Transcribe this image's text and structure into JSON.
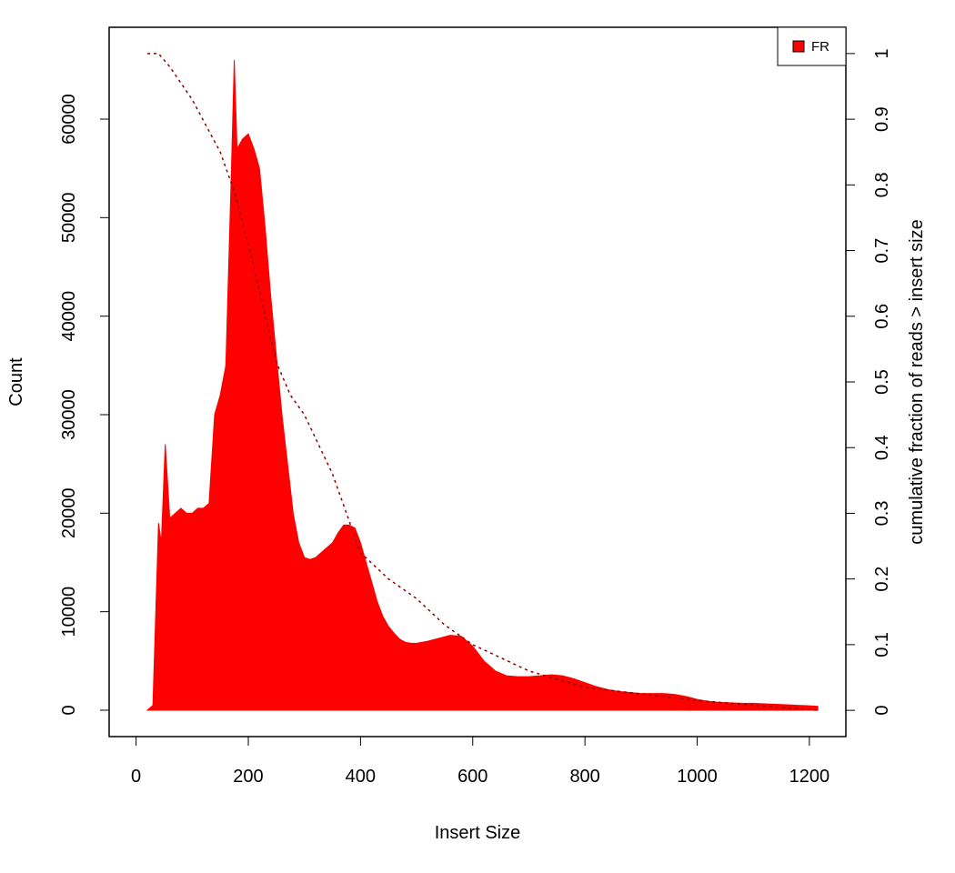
{
  "chart_data": {
    "type": "histogram-line",
    "xlabel": "Insert Size",
    "ylabel": "Count",
    "y2label": "cumulative fraction of reads > insert size",
    "xlim": [
      -48,
      1265
    ],
    "ylim": [
      -2677,
      69323
    ],
    "y2lim": [
      -0.04,
      1.04
    ],
    "xticks": [
      0,
      200,
      400,
      600,
      800,
      1000,
      1200
    ],
    "yticks": [
      0,
      10000,
      20000,
      30000,
      40000,
      50000,
      60000
    ],
    "y2ticks": [
      0,
      0.1,
      0.2,
      0.3,
      0.4,
      0.5,
      0.6,
      0.7,
      0.8,
      0.9,
      1
    ],
    "legend": "top-right",
    "series": [
      {
        "name": "FR",
        "color": "#ff0000",
        "x": [
          20,
          30,
          40,
          45,
          52,
          60,
          70,
          80,
          90,
          100,
          110,
          120,
          130,
          140,
          150,
          160,
          170,
          175,
          180,
          190,
          200,
          210,
          220,
          230,
          240,
          250,
          260,
          270,
          280,
          290,
          300,
          310,
          320,
          330,
          340,
          350,
          360,
          370,
          380,
          390,
          400,
          410,
          420,
          430,
          440,
          450,
          460,
          470,
          480,
          490,
          500,
          520,
          540,
          560,
          580,
          600,
          620,
          640,
          660,
          680,
          700,
          720,
          740,
          760,
          780,
          800,
          820,
          840,
          860,
          880,
          900,
          920,
          940,
          960,
          980,
          1000,
          1020,
          1040,
          1060,
          1080,
          1100,
          1120,
          1140,
          1160,
          1180,
          1200,
          1215
        ],
        "values": [
          0,
          500,
          19000,
          17000,
          27000,
          19500,
          20000,
          20500,
          20000,
          20000,
          20500,
          20500,
          21000,
          30000,
          32000,
          35000,
          55000,
          66000,
          57000,
          58000,
          58500,
          57000,
          55000,
          49000,
          42000,
          36000,
          30000,
          25000,
          20000,
          17000,
          15500,
          15300,
          15500,
          16000,
          16500,
          17000,
          18000,
          18800,
          18800,
          18500,
          17000,
          15000,
          13000,
          11000,
          9500,
          8500,
          7800,
          7200,
          6900,
          6800,
          6800,
          7000,
          7300,
          7600,
          7500,
          6500,
          5000,
          4000,
          3500,
          3400,
          3400,
          3500,
          3600,
          3500,
          3200,
          2800,
          2400,
          2100,
          1900,
          1800,
          1700,
          1700,
          1700,
          1600,
          1400,
          1100,
          900,
          800,
          750,
          700,
          700,
          650,
          600,
          550,
          500,
          450,
          400
        ]
      },
      {
        "axis": "y2",
        "color": "#8b0000",
        "x": [
          20,
          40,
          60,
          100,
          150,
          175,
          200,
          225,
          250,
          275,
          300,
          350,
          400,
          450,
          500,
          550,
          600,
          650,
          700,
          800,
          900,
          1000,
          1100,
          1215
        ],
        "values": [
          1,
          1,
          0.98,
          0.93,
          0.85,
          0.79,
          0.71,
          0.62,
          0.53,
          0.48,
          0.45,
          0.36,
          0.24,
          0.2,
          0.17,
          0.13,
          0.1,
          0.08,
          0.06,
          0.035,
          0.025,
          0.015,
          0.008,
          0
        ]
      }
    ]
  }
}
